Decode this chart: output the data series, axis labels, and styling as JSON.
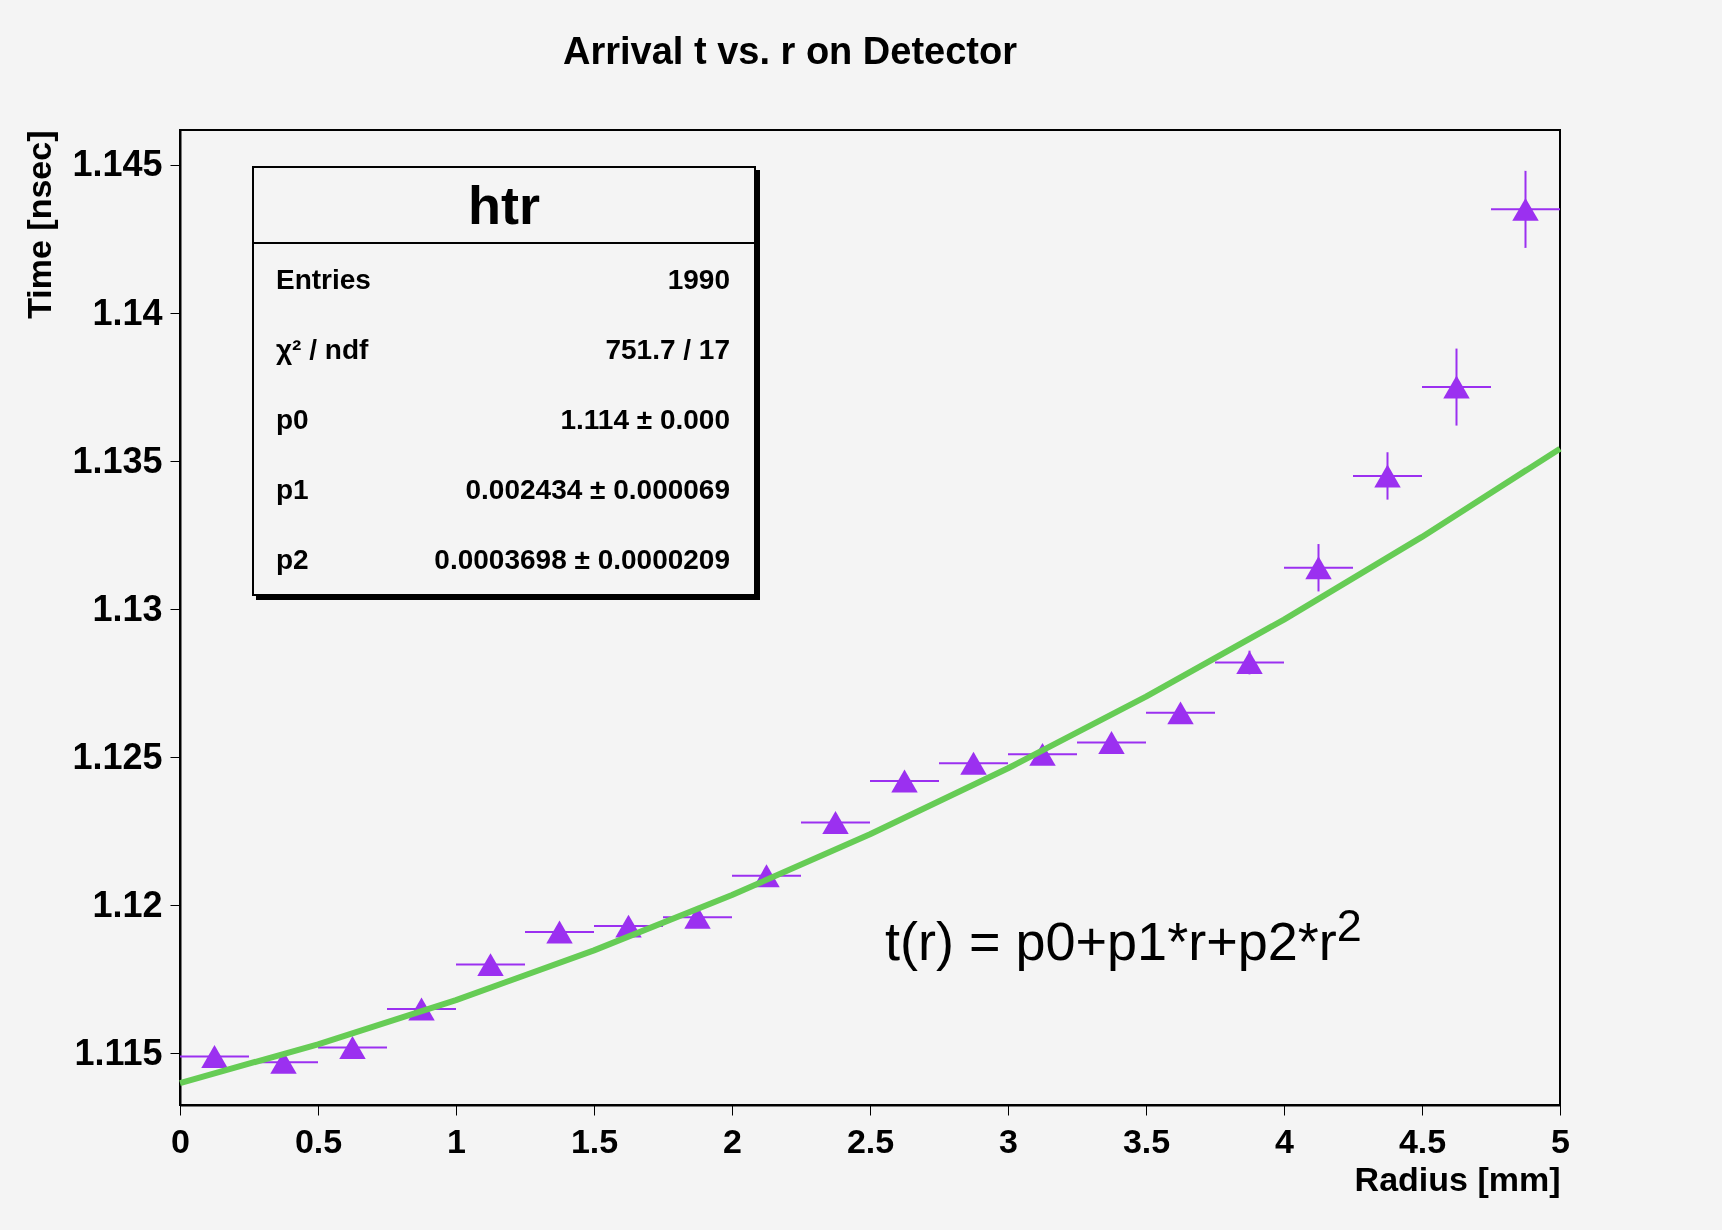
{
  "chart_data": {
    "type": "scatter",
    "title": "Arrival t vs. r on Detector",
    "xlabel": "Radius [mm]",
    "ylabel": "Time [nsec]",
    "xlim": [
      0,
      5
    ],
    "xticks": [
      0,
      0.5,
      1,
      1.5,
      2,
      2.5,
      3,
      3.5,
      4,
      4.5,
      5
    ],
    "ylim": [
      1.11326,
      1.14618
    ],
    "yticks": [
      1.115,
      1.12,
      1.125,
      1.13,
      1.135,
      1.14,
      1.145
    ],
    "grid": false,
    "marker": "triangle",
    "series": [
      {
        "color": "#9b30f0",
        "x": [
          0.125,
          0.375,
          0.625,
          0.875,
          1.125,
          1.375,
          1.625,
          1.875,
          2.125,
          2.375,
          2.625,
          2.875,
          3.125,
          3.375,
          3.625,
          3.875,
          4.125,
          4.375,
          4.625,
          4.875
        ],
        "values": [
          1.1149,
          1.1147,
          1.1152,
          1.1165,
          1.118,
          1.1191,
          1.1193,
          1.1196,
          1.121,
          1.1228,
          1.1242,
          1.1248,
          1.1251,
          1.1255,
          1.1265,
          1.1282,
          1.1314,
          1.1345,
          1.1375,
          1.1435
        ],
        "errors": [
          0.0003,
          0.0003,
          0.0003,
          0.0003,
          0.0003,
          0.0003,
          0.0003,
          0.0003,
          0.0003,
          0.0003,
          0.0003,
          0.0003,
          0.0003,
          0.0003,
          0.0003,
          0.0004,
          0.0008,
          0.0008,
          0.0013,
          0.0013
        ],
        "xerrors": [
          0.125,
          0.125,
          0.125,
          0.125,
          0.125,
          0.125,
          0.125,
          0.125,
          0.125,
          0.125,
          0.125,
          0.125,
          0.125,
          0.125,
          0.125,
          0.125,
          0.125,
          0.125,
          0.125,
          0.125
        ]
      },
      {
        "type": "line",
        "color": "#66cc55",
        "marker": "none",
        "x": [
          0,
          0.5,
          1,
          1.5,
          2,
          2.5,
          3,
          3.5,
          4,
          4.5,
          5
        ],
        "values": [
          1.114,
          1.11531,
          1.1168,
          1.11848,
          1.12035,
          1.1224,
          1.12463,
          1.12705,
          1.12965,
          1.13244,
          1.13542
        ]
      }
    ],
    "annotations": [
      "htr",
      "Entries",
      "1990",
      "χ² / ndf",
      "751.7 / 17",
      "p0",
      "1.114 ± 0.000",
      "p1",
      "0.002434 ± 0.000069",
      "p2",
      "0.0003698 ± 0.0000209",
      "t(r) = p0+p1*r+p2*r$^{2}$"
    ]
  }
}
